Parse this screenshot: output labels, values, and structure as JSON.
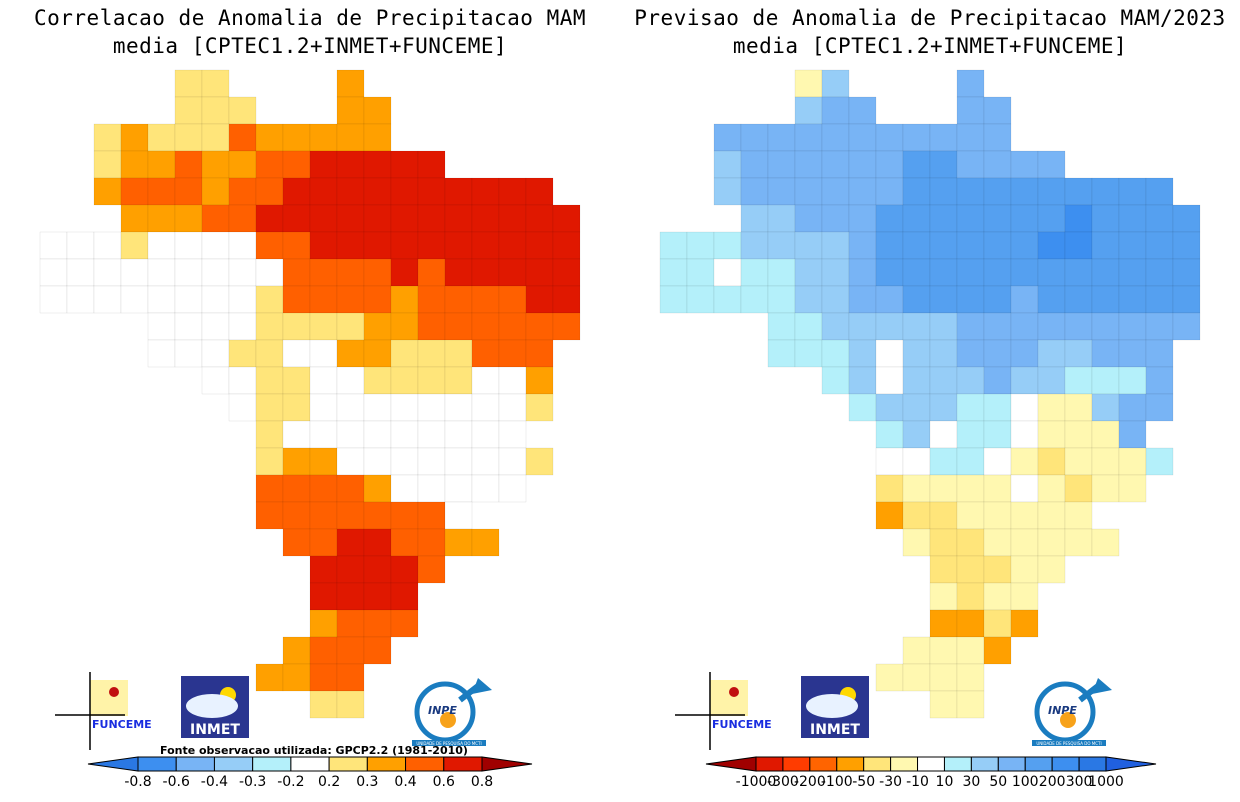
{
  "left_panel": {
    "title_line1": "Correlacao de Anomalia de Precipitacao MAM",
    "title_line2": "media [CPTEC1.2+INMET+FUNCEME]",
    "source_note": "Fonte observacao utilizada: GPCP2.2 (1981-2010)",
    "colorbar": {
      "ticks": [
        "-0.8",
        "-0.6",
        "-0.4",
        "-0.3",
        "-0.2",
        "0.2",
        "0.3",
        "0.4",
        "0.6",
        "0.8"
      ],
      "under_color": "#2a78e4",
      "over_color": "#a00000",
      "colors": [
        "#3d8ff0",
        "#78b4f5",
        "#96cdf7",
        "#b4f0fa",
        "#ffffff",
        "#ffe57a",
        "#ffa000",
        "#ff6000",
        "#e01800"
      ]
    },
    "field_categories": {
      "w": "#ffffff",
      "1": "#ffe57a",
      "2": "#ffa000",
      "3": "#ff6000",
      "4": "#e01800"
    },
    "field_grid": [
      ".....11....2........",
      ".....111...22.......",
      "..12111322222.......",
      "..1223223344444.....",
      "..23332334444444444.",
      "...22233444444444444",
      "www1wwww334444444444",
      "wwwwwwwww33334344444",
      "wwwwwwww133332333344",
      "....wwww111122333333",
      "....www11ww22111333.",
      "......ww11ww1111ww2.",
      ".......w11wwwwwwww1.",
      "........1wwwwwwwww..",
      "........122wwwwwww1.",
      "........33332wwwww..",
      "........3333333w....",
      ".........33443322...",
      "..........44443.....",
      "..........4444......",
      "..........2333......",
      ".........2333.......",
      "........2233........",
      "..........11........"
    ]
  },
  "right_panel": {
    "title_line1": "Previsao de Anomalia de Precipitacao MAM/2023",
    "title_line2": "media [CPTEC1.2+INMET+FUNCEME]",
    "colorbar": {
      "ticks": [
        "-1000",
        "-300",
        "-200",
        "-100",
        "-50",
        "-30",
        "-10",
        "10",
        "30",
        "50",
        "100",
        "200",
        "300",
        "1000"
      ],
      "under_color": "#a00000",
      "over_color": "#2060e0",
      "colors": [
        "#e01800",
        "#ff3c00",
        "#ff6400",
        "#ffa000",
        "#ffe57a",
        "#fff8b0",
        "#ffffff",
        "#b4f0fa",
        "#96cdf7",
        "#78b4f5",
        "#55a0f0",
        "#3d8ff0",
        "#2a78e4"
      ]
    },
    "field_categories": {
      "w": "#ffffff",
      "a": "#b4f0fa",
      "b": "#96cdf7",
      "c": "#78b4f5",
      "d": "#55a0f0",
      "e": "#3d8ff0",
      "y": "#fff8b0",
      "Y": "#ffe57a",
      "o": "#ffa000"
    },
    "field_grid": [
      ".....yb....c........",
      ".....bcc...cc.......",
      "..ccccccccccc.......",
      "..bccccccddcccc.....",
      "..bccccccdddddddddd.",
      "...bbcccdddddddedddd",
      "aaabbbbcddddddeedddd",
      "aawaabbcdddddddddddd",
      "aaaaabbccddddcdddddd",
      "....aabbbbbccccccccc",
      "....aaabwbbcccbbccc.",
      "......abwbbbcbbaaac.",
      ".......abbbaawyybcc.",
      "........abwaawyyyc..",
      "........wwaawyYyyya.",
      "........YyyyywyYyy..",
      "........oYYyyyyy....",
      ".........yYYyyyyy...",
      "..........YYYyy.....",
      "..........yYyy......",
      "..........ooYo......",
      ".........yyyo.......",
      "........yyyy........",
      "..........yy........"
    ]
  },
  "logos": {
    "funceme": "FUNCEME",
    "inmet": "INMET",
    "inpe": "INPE",
    "inpe_subtitle": "UNIDADE DE PESQUISA DO MCTI"
  }
}
